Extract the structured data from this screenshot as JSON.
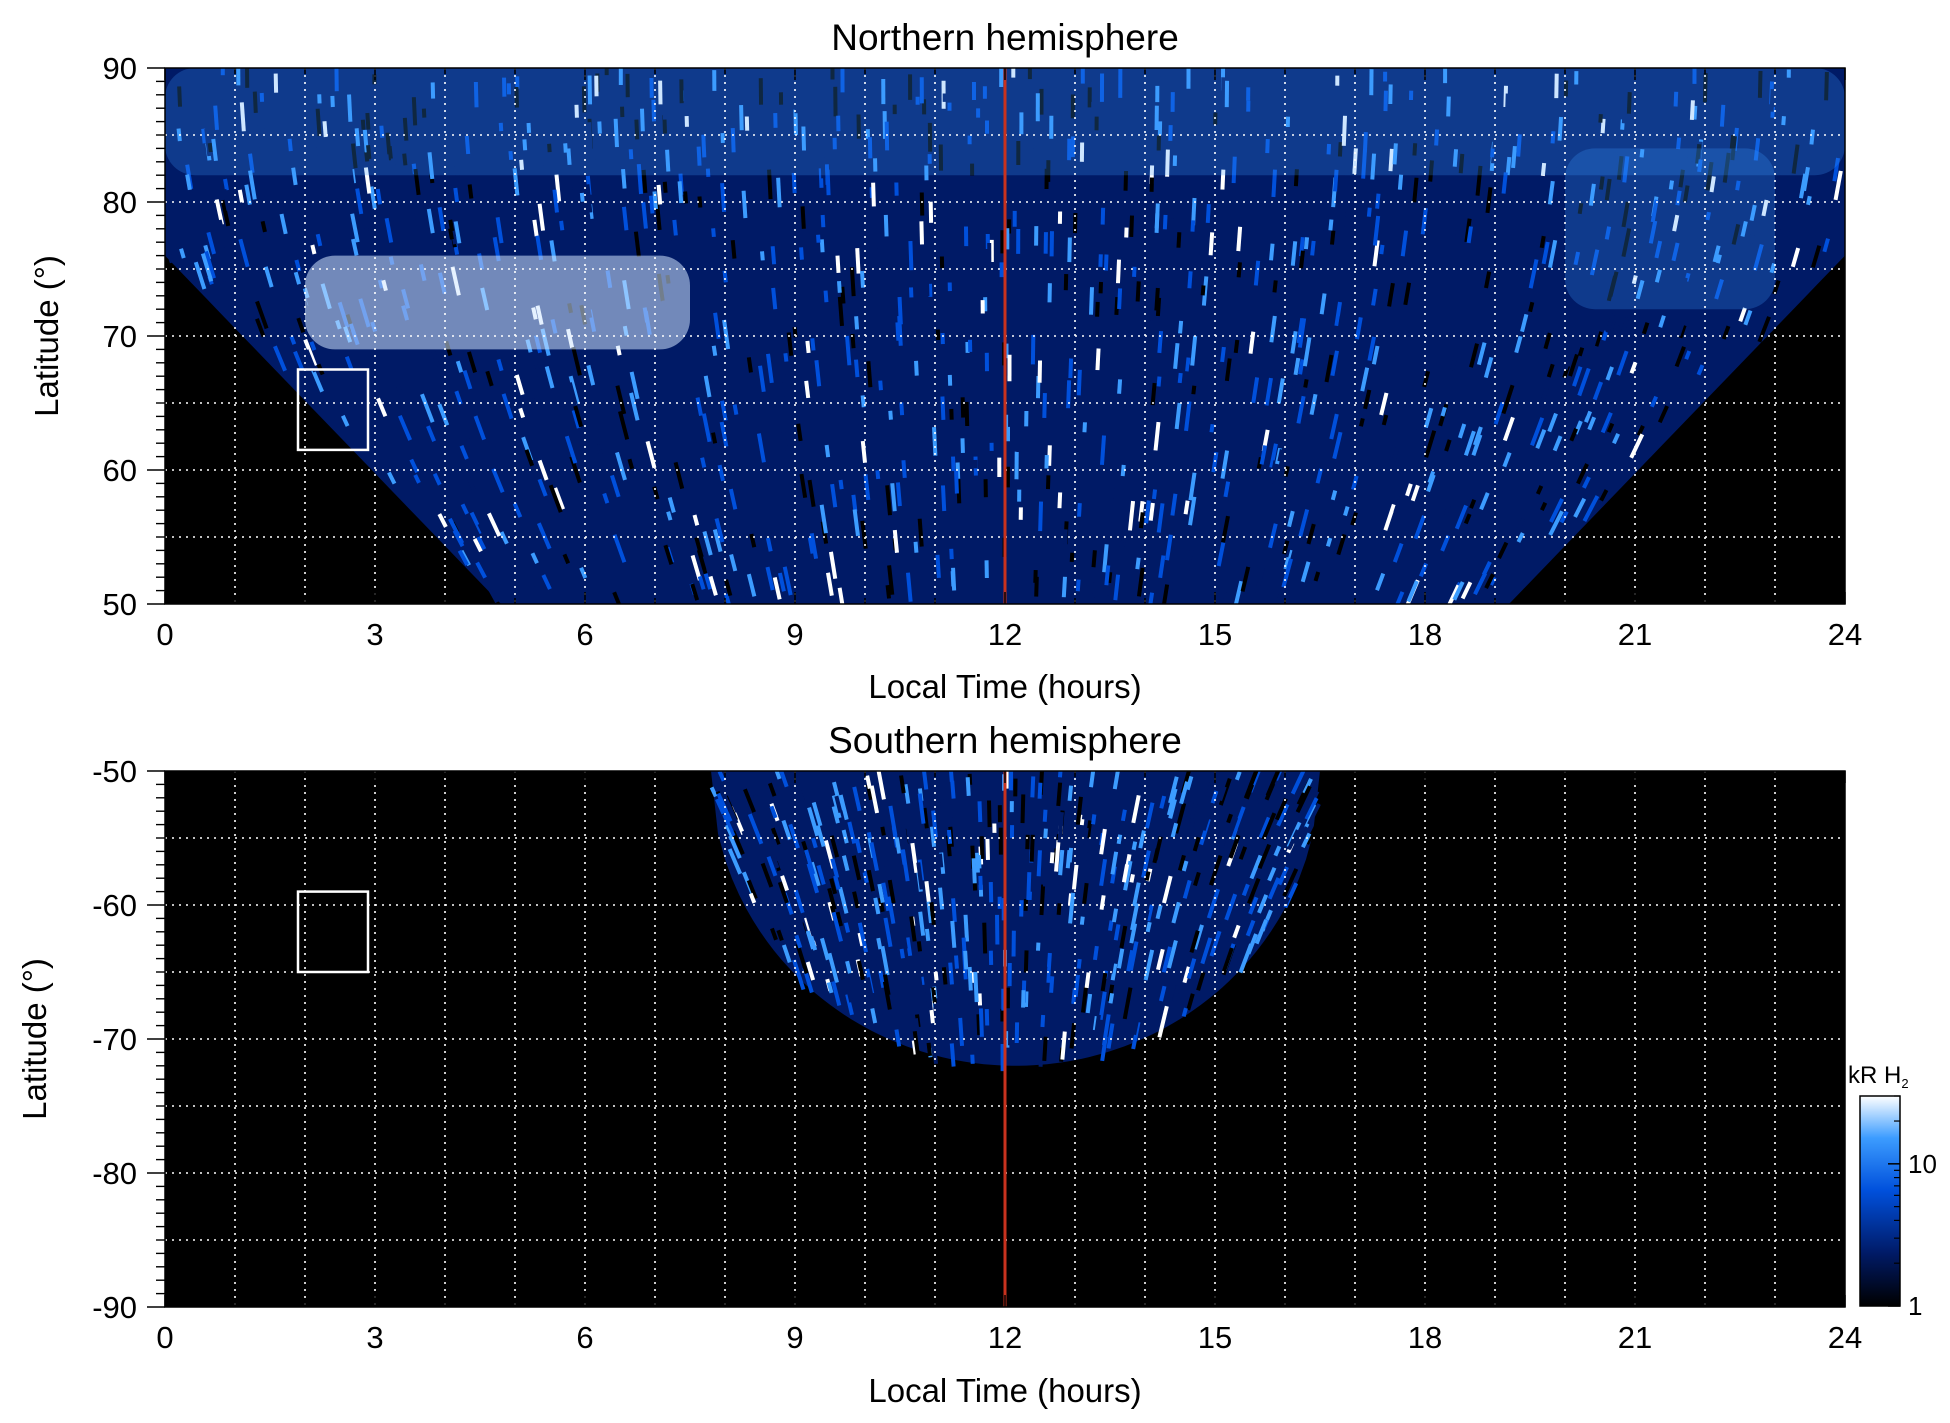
{
  "chart_data": [
    {
      "type": "heatmap",
      "title": "Northern hemisphere",
      "xlabel": "Local Time (hours)",
      "ylabel": "Latitude (°)",
      "xlim": [
        0,
        24
      ],
      "ylim": [
        50,
        90
      ],
      "x_ticks": [
        0,
        3,
        6,
        9,
        12,
        15,
        18,
        21,
        24
      ],
      "y_ticks": [
        50,
        60,
        70,
        80,
        90
      ],
      "grid": true,
      "vertical_line": {
        "x": 12,
        "color": "#c8321e"
      },
      "box": {
        "x": [
          1.9,
          2.9
        ],
        "y": [
          61.5,
          67.5
        ],
        "color": "#ffffff"
      },
      "coverage": "no data (black) below latitude 76 near LT 0 and 24 down to about 50 at LT 4.8 and 19.4; emission coverage over local times 4.8–19.4 at latitude 50, full local time range above latitude 76",
      "features": [
        {
          "region": "bright arc",
          "local_time": [
            2,
            7.5
          ],
          "latitude": [
            69,
            76
          ],
          "intensity_kR": 20
        },
        {
          "region": "polar band",
          "local_time": [
            0,
            24
          ],
          "latitude": [
            82,
            90
          ],
          "intensity_kR": 8
        },
        {
          "region": "dawn/dusk arcs",
          "local_time": [
            20,
            23
          ],
          "latitude": [
            72,
            84
          ],
          "intensity_kR": 10
        }
      ]
    },
    {
      "type": "heatmap",
      "title": "Southern hemisphere",
      "xlabel": "Local Time (hours)",
      "ylabel": "Latitude (°)",
      "xlim": [
        0,
        24
      ],
      "ylim": [
        -90,
        -50
      ],
      "x_ticks": [
        0,
        3,
        6,
        9,
        12,
        15,
        18,
        21,
        24
      ],
      "y_ticks": [
        -90,
        -80,
        -70,
        -60,
        -50
      ],
      "grid": true,
      "vertical_line": {
        "x": 12,
        "color": "#c8321e"
      },
      "box": {
        "x": [
          1.9,
          2.9
        ],
        "y": [
          -65,
          -59
        ],
        "color": "#ffffff"
      },
      "coverage": "emission only within a cap centred on LT 12, spanning local times 7.8–16.5 at latitude -50 and reaching latitude -72 near LT 11.5–13",
      "features": [
        {
          "region": "cap edge",
          "local_time": [
            9,
            15
          ],
          "latitude": [
            -70,
            -62
          ],
          "intensity_kR": 10
        }
      ]
    }
  ],
  "colorbar": {
    "label_main": "kR H",
    "label_sub": "2",
    "scale": "log",
    "range": [
      1,
      30
    ],
    "ticks": [
      "1",
      "10"
    ],
    "colors": [
      "#000000",
      "#001a66",
      "#0050dc",
      "#3c9cff",
      "#ffffff"
    ]
  },
  "colors": {
    "background": "#000000",
    "grid": "#ffffff",
    "marker_line": "#c8321e"
  }
}
